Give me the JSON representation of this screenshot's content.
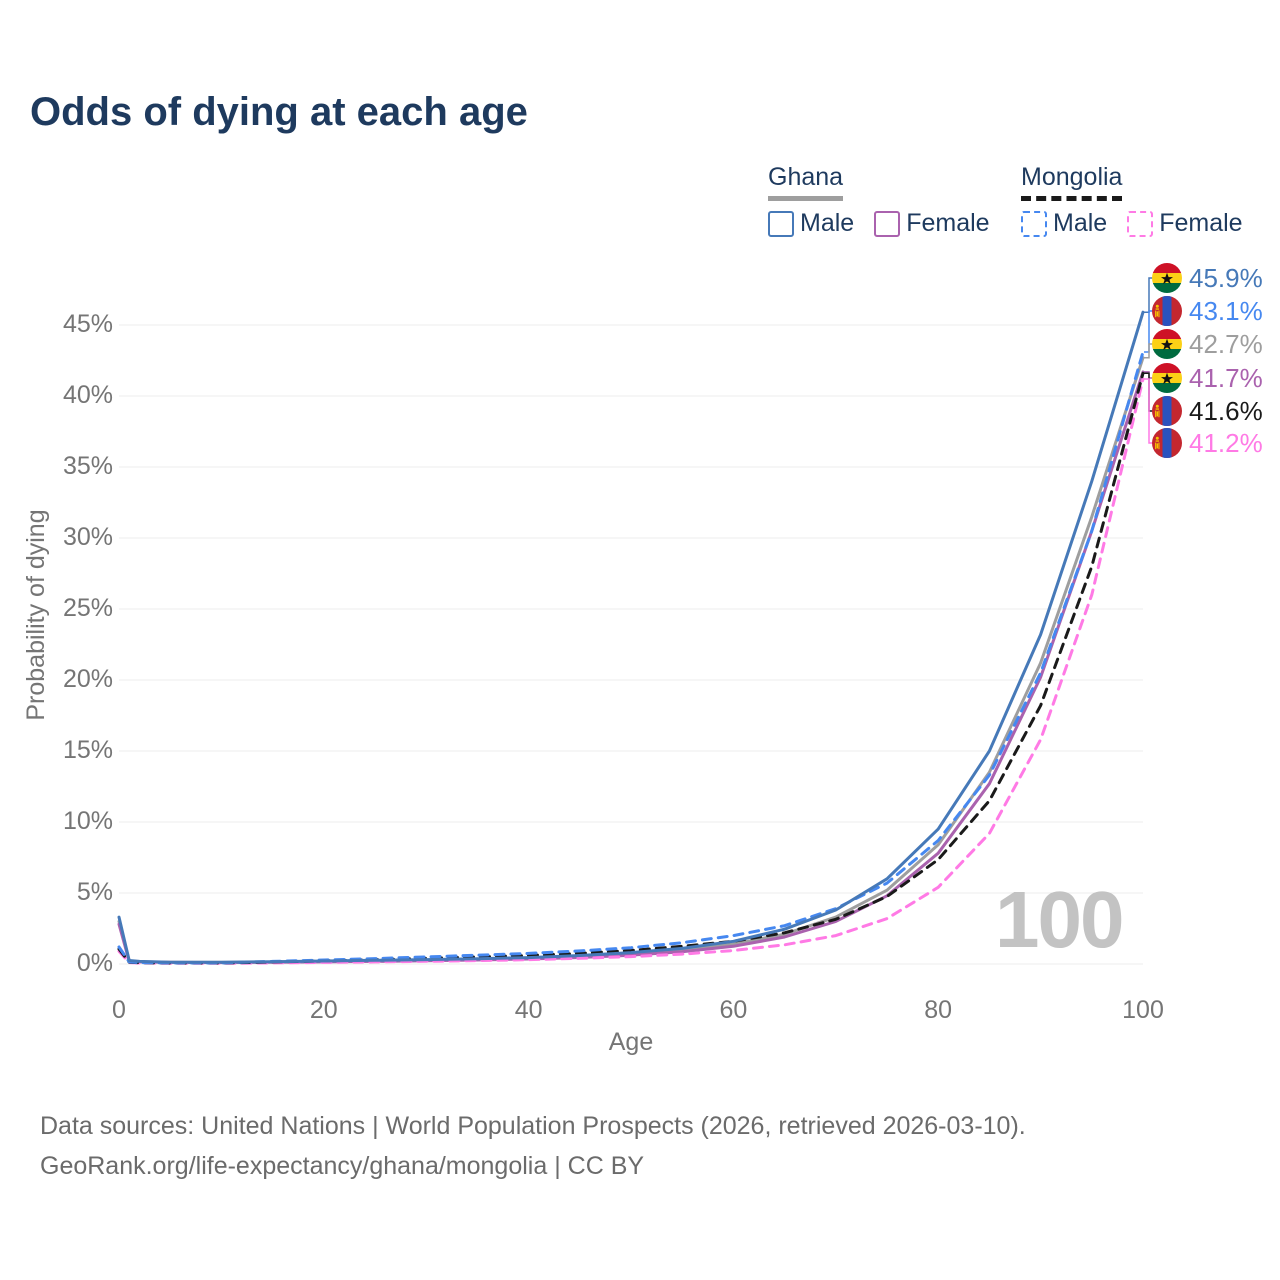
{
  "title": "Odds of dying at each age",
  "legend": {
    "groups": [
      {
        "name": "Ghana",
        "line_style": "solid",
        "underline_color": "#9e9e9e",
        "items": [
          {
            "label": "Male",
            "color": "#4679b8"
          },
          {
            "label": "Female",
            "color": "#aa62ae"
          }
        ]
      },
      {
        "name": "Mongolia",
        "line_style": "dashed",
        "underline_color": "#1a1a1a",
        "items": [
          {
            "label": "Male",
            "color": "#4688f0"
          },
          {
            "label": "Female",
            "color": "#ff7ae5"
          }
        ]
      }
    ]
  },
  "watermark_age": "100",
  "end_labels": [
    {
      "country": "Ghana",
      "flag": "ghana",
      "label": "45.9%",
      "value": 45.9,
      "color": "#4679b8",
      "series": "Ghana Male"
    },
    {
      "country": "Mongolia",
      "flag": "mongolia",
      "label": "43.1%",
      "value": 43.1,
      "color": "#4688f0",
      "series": "Mongolia Male"
    },
    {
      "country": "Ghana",
      "flag": "ghana",
      "label": "42.7%",
      "value": 42.7,
      "color": "#9e9e9e",
      "series": "Ghana (both sexes)"
    },
    {
      "country": "Ghana",
      "flag": "ghana",
      "label": "41.7%",
      "value": 41.7,
      "color": "#aa62ae",
      "series": "Ghana Female"
    },
    {
      "country": "Mongolia",
      "flag": "mongolia",
      "label": "41.6%",
      "value": 41.6,
      "color": "#1a1a1a",
      "series": "Mongolia (both sexes)"
    },
    {
      "country": "Mongolia",
      "flag": "mongolia",
      "label": "41.2%",
      "value": 41.2,
      "color": "#ff7ae5",
      "series": "Mongolia Female"
    }
  ],
  "chart_data": {
    "type": "line",
    "title": "Odds of dying at each age",
    "xlabel": "Age",
    "ylabel": "Probability of dying",
    "x_ticks": [
      0,
      20,
      40,
      60,
      80,
      100
    ],
    "y_tick_labels": [
      "0%",
      "5%",
      "10%",
      "15%",
      "20%",
      "25%",
      "30%",
      "35%",
      "40%",
      "45%"
    ],
    "xlim": [
      0,
      100
    ],
    "ylim": [
      0,
      48
    ],
    "grid": "horizontal",
    "legend_position": "top-right",
    "x": [
      0,
      1,
      2,
      5,
      10,
      15,
      20,
      25,
      30,
      35,
      40,
      45,
      50,
      55,
      60,
      65,
      70,
      75,
      80,
      85,
      90,
      95,
      100
    ],
    "series": [
      {
        "name": "Ghana Male",
        "country": "Ghana",
        "sex": "Male",
        "style": "solid",
        "color": "#4679b8",
        "end_label": "45.9%",
        "values": [
          3.3,
          0.25,
          0.18,
          0.13,
          0.12,
          0.16,
          0.21,
          0.26,
          0.31,
          0.37,
          0.45,
          0.6,
          0.8,
          1.1,
          1.6,
          2.45,
          3.8,
          6.0,
          9.5,
          15.0,
          23.2,
          34.0,
          45.9
        ]
      },
      {
        "name": "Mongolia Male",
        "country": "Mongolia",
        "sex": "Male",
        "style": "dashed",
        "color": "#4688f0",
        "end_label": "43.1%",
        "values": [
          1.2,
          0.15,
          0.1,
          0.08,
          0.08,
          0.18,
          0.28,
          0.38,
          0.5,
          0.62,
          0.75,
          0.92,
          1.15,
          1.5,
          2.0,
          2.7,
          3.9,
          5.7,
          8.7,
          13.3,
          20.5,
          30.5,
          43.1
        ]
      },
      {
        "name": "Ghana (both sexes)",
        "country": "Ghana",
        "sex": "Both",
        "style": "solid",
        "color": "#9e9e9e",
        "end_label": "42.7%",
        "values": [
          3.0,
          0.22,
          0.16,
          0.12,
          0.11,
          0.14,
          0.18,
          0.22,
          0.27,
          0.32,
          0.4,
          0.53,
          0.7,
          0.97,
          1.4,
          2.1,
          3.3,
          5.2,
          8.4,
          13.5,
          21.2,
          31.5,
          42.7
        ]
      },
      {
        "name": "Ghana Female",
        "country": "Ghana",
        "sex": "Female",
        "style": "solid",
        "color": "#aa62ae",
        "end_label": "41.7%",
        "values": [
          2.8,
          0.2,
          0.15,
          0.11,
          0.1,
          0.12,
          0.15,
          0.18,
          0.23,
          0.28,
          0.35,
          0.46,
          0.62,
          0.86,
          1.25,
          1.9,
          3.0,
          4.8,
          7.8,
          12.7,
          20.2,
          30.5,
          41.7
        ]
      },
      {
        "name": "Mongolia (both sexes)",
        "country": "Mongolia",
        "sex": "Both",
        "style": "dashed",
        "color": "#1a1a1a",
        "end_label": "41.6%",
        "values": [
          1.05,
          0.13,
          0.09,
          0.07,
          0.07,
          0.14,
          0.22,
          0.3,
          0.4,
          0.5,
          0.6,
          0.75,
          0.95,
          1.25,
          1.6,
          2.2,
          3.15,
          4.75,
          7.35,
          11.5,
          18.2,
          28.0,
          41.6
        ]
      },
      {
        "name": "Mongolia Female",
        "country": "Mongolia",
        "sex": "Female",
        "style": "dashed",
        "color": "#ff7ae5",
        "end_label": "41.2%",
        "values": [
          0.9,
          0.1,
          0.07,
          0.05,
          0.05,
          0.08,
          0.11,
          0.15,
          0.19,
          0.24,
          0.3,
          0.4,
          0.52,
          0.7,
          0.95,
          1.35,
          2.0,
          3.2,
          5.4,
          9.2,
          15.8,
          26.0,
          41.2
        ]
      }
    ]
  },
  "footer": {
    "line1": "Data sources: United Nations | World Population Prospects (2026, retrieved 2026-03-10).",
    "line2": "GeoRank.org/life-expectancy/ghana/mongolia | CC BY"
  }
}
